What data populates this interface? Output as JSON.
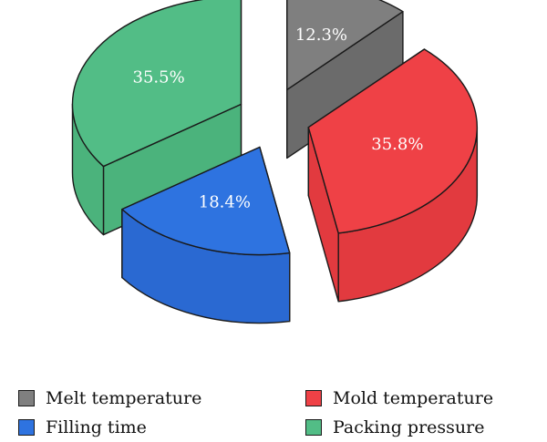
{
  "chart_data": {
    "type": "pie",
    "title": "",
    "slices": [
      {
        "label": "Melt temperature",
        "value": 12.3,
        "display": "12.3%",
        "color": "#7f7f7f",
        "side_color": "#6b6b6b"
      },
      {
        "label": "Mold temperature",
        "value": 35.8,
        "display": "35.8%",
        "color": "#ef4146",
        "side_color": "#e23a3f"
      },
      {
        "label": "Filling time",
        "value": 18.4,
        "display": "18.4%",
        "color": "#2e73e0",
        "side_color": "#2a69d2"
      },
      {
        "label": "Packing pressure",
        "value": 35.5,
        "display": "35.5%",
        "color": "#52bd86",
        "side_color": "#4bb37c"
      }
    ],
    "style": "3d-exploded",
    "legend_position": "bottom"
  },
  "legend": [
    {
      "label": "Melt temperature",
      "color": "#7f7f7f"
    },
    {
      "label": "Mold temperature",
      "color": "#ef4146"
    },
    {
      "label": "Filling time",
      "color": "#2e73e0"
    },
    {
      "label": "Packing pressure",
      "color": "#52bd86"
    }
  ]
}
